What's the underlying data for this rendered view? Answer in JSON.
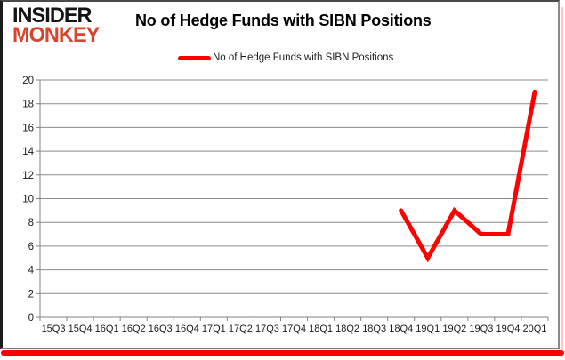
{
  "logo": {
    "line1": "INSIDER",
    "line2": "MONKEY"
  },
  "header": {
    "title": "No of Hedge Funds with SIBN Positions"
  },
  "legend": {
    "label": "No of Hedge Funds with SIBN Positions"
  },
  "colors": {
    "accent_red": "#ff0000",
    "logo_red": "#d8452e",
    "grid": "#8c8c8c",
    "axis": "#808080",
    "tick_text": "#1a1a1a",
    "shadow_red": "#fb0200"
  },
  "chart_data": {
    "type": "line",
    "title": "No of Hedge Funds with SIBN Positions",
    "categories": [
      "15Q3",
      "15Q4",
      "16Q1",
      "16Q2",
      "16Q3",
      "16Q4",
      "17Q1",
      "17Q2",
      "17Q3",
      "17Q4",
      "18Q1",
      "18Q2",
      "18Q3",
      "18Q4",
      "19Q1",
      "19Q2",
      "19Q3",
      "19Q4",
      "20Q1"
    ],
    "series": [
      {
        "name": "No of Hedge Funds with SIBN Positions",
        "color": "#ff0000",
        "values": [
          null,
          null,
          null,
          null,
          null,
          null,
          null,
          null,
          null,
          null,
          null,
          null,
          null,
          9,
          5,
          9,
          7,
          7,
          19
        ]
      }
    ],
    "ylim": [
      0,
      20
    ],
    "ytick_step": 2,
    "grid": "horizontal",
    "legend_position": "top"
  }
}
